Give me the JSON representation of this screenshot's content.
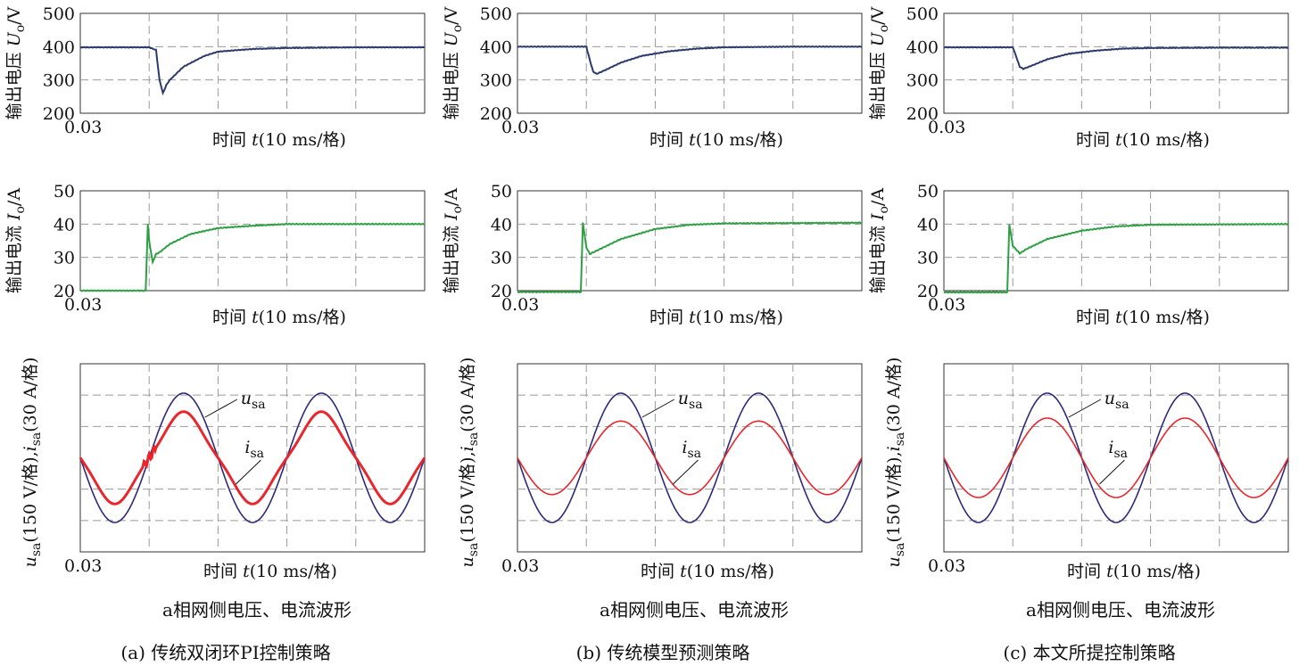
{
  "colors": {
    "voltage": "#2b3a6b",
    "current": "#2ea043",
    "grid_voltage": "#2d2a7a",
    "grid_current": "#e8262c",
    "grid": "#9a9a9a",
    "frame": "#333333"
  },
  "common": {
    "x_start_label": "0.03",
    "xlabel_prefix": "时间 ",
    "xlabel_var": "t",
    "xlabel_unit": "(10 ms/格)",
    "v_ylabel_prefix": "输出电压 ",
    "v_ylabel_var": "U",
    "v_ylabel_sub": "o",
    "v_ylabel_unit": "/V",
    "c_ylabel_prefix": "输出电流 ",
    "c_ylabel_var": "I",
    "c_ylabel_sub": "o",
    "c_ylabel_unit": "/A",
    "g_ylabel_u": "u",
    "g_ylabel_u_sub": "sa",
    "g_ylabel_mid": "(150 V/格),",
    "g_ylabel_i": "i",
    "g_ylabel_i_sub": "sa",
    "g_ylabel_end": "(30 A/格)",
    "ann_u": "u",
    "ann_u_sub": "sa",
    "ann_i": "i",
    "ann_i_sub": "sa",
    "grid_caption": "a相网侧电压、电流波形"
  },
  "chart_data": [
    {
      "type": "line",
      "x_divisions": 5,
      "x_unit": "s",
      "panels": [
        {
          "name": "output-voltage",
          "ylim": [
            200,
            500
          ],
          "yticks": [
            200,
            300,
            400,
            500
          ],
          "x": [
            0.03,
            0.04,
            0.041,
            0.0415,
            0.042,
            0.0425,
            0.043,
            0.045,
            0.048,
            0.05,
            0.055,
            0.06,
            0.07,
            0.08
          ],
          "y": [
            398,
            398,
            390,
            300,
            260,
            285,
            300,
            340,
            372,
            385,
            393,
            396,
            398,
            398
          ]
        },
        {
          "name": "output-current",
          "ylim": [
            20,
            50
          ],
          "yticks": [
            20,
            30,
            40,
            50
          ],
          "x": [
            0.03,
            0.039,
            0.0395,
            0.0398,
            0.04,
            0.0405,
            0.041,
            0.0415,
            0.043,
            0.046,
            0.05,
            0.055,
            0.06,
            0.08
          ],
          "y": [
            20,
            20,
            20,
            40,
            35,
            28.5,
            31,
            31.5,
            34,
            37,
            38.8,
            39.5,
            40,
            40
          ]
        },
        {
          "name": "grid-waveform",
          "ylim": [
            -3.2,
            3.2
          ],
          "series": [
            {
              "name": "usa",
              "kind": "sine",
              "amplitude": 2.2,
              "period": 0.02,
              "phase0": 0.0
            },
            {
              "name": "isa",
              "kind": "sine",
              "amplitude": 1.45,
              "period": 0.02,
              "phase0": 0.0,
              "distorted": true
            }
          ]
        }
      ],
      "caption": "(a) 传统双闭环PI控制策略"
    },
    {
      "type": "line",
      "x_divisions": 5,
      "x_unit": "s",
      "panels": [
        {
          "name": "output-voltage",
          "ylim": [
            200,
            500
          ],
          "yticks": [
            200,
            300,
            400,
            500
          ],
          "x": [
            0.03,
            0.04,
            0.0405,
            0.041,
            0.0415,
            0.043,
            0.045,
            0.048,
            0.052,
            0.056,
            0.06,
            0.07,
            0.08
          ],
          "y": [
            400,
            400,
            360,
            325,
            318,
            332,
            352,
            372,
            386,
            394,
            398,
            400,
            400
          ]
        },
        {
          "name": "output-current",
          "ylim": [
            20,
            50
          ],
          "yticks": [
            20,
            30,
            40,
            50
          ],
          "x": [
            0.03,
            0.039,
            0.0392,
            0.0395,
            0.04,
            0.0405,
            0.042,
            0.045,
            0.05,
            0.055,
            0.06,
            0.08
          ],
          "y": [
            19.6,
            19.6,
            19.6,
            40.5,
            33,
            31,
            32.5,
            35.5,
            38.5,
            39.8,
            40.2,
            40.4
          ]
        },
        {
          "name": "grid-waveform",
          "ylim": [
            -3.2,
            3.2
          ],
          "series": [
            {
              "name": "usa",
              "kind": "sine",
              "amplitude": 2.2,
              "period": 0.02,
              "phase0": 0.0
            },
            {
              "name": "isa",
              "kind": "sine",
              "amplitude": 1.25,
              "period": 0.02,
              "phase0": 0.0,
              "distorted": false
            }
          ]
        }
      ],
      "caption": "(b) 传统模型预测策略"
    },
    {
      "type": "line",
      "x_divisions": 5,
      "x_unit": "s",
      "panels": [
        {
          "name": "output-voltage",
          "ylim": [
            200,
            500
          ],
          "yticks": [
            200,
            300,
            400,
            500
          ],
          "x": [
            0.03,
            0.04,
            0.0405,
            0.041,
            0.0415,
            0.043,
            0.045,
            0.048,
            0.052,
            0.056,
            0.06,
            0.07,
            0.08
          ],
          "y": [
            398,
            398,
            370,
            340,
            333,
            345,
            362,
            378,
            388,
            394,
            396,
            397,
            397
          ]
        },
        {
          "name": "output-current",
          "ylim": [
            20,
            50
          ],
          "yticks": [
            20,
            30,
            40,
            50
          ],
          "x": [
            0.03,
            0.039,
            0.0392,
            0.0395,
            0.04,
            0.041,
            0.042,
            0.045,
            0.05,
            0.055,
            0.06,
            0.08
          ],
          "y": [
            19.5,
            19.5,
            19.5,
            40,
            33.5,
            31.2,
            32.5,
            35.5,
            38,
            39.3,
            39.8,
            40
          ]
        },
        {
          "name": "grid-waveform",
          "ylim": [
            -3.2,
            3.2
          ],
          "series": [
            {
              "name": "usa",
              "kind": "sine",
              "amplitude": 2.2,
              "period": 0.02,
              "phase0": 0.0
            },
            {
              "name": "isa",
              "kind": "sine",
              "amplitude": 1.35,
              "period": 0.02,
              "phase0": 0.0,
              "distorted": false
            }
          ]
        }
      ],
      "caption": "(c) 本文所提控制策略"
    }
  ]
}
